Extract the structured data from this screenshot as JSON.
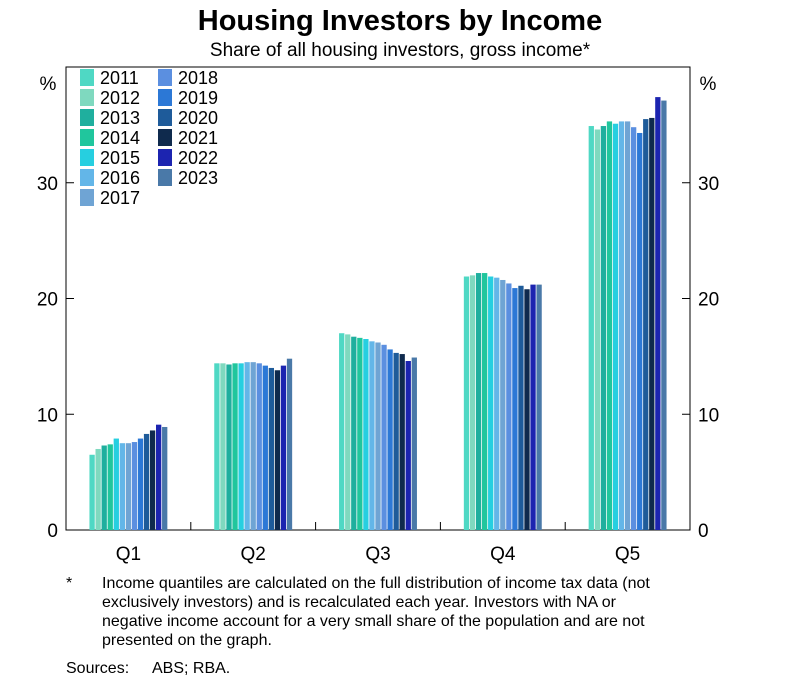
{
  "chart_data": {
    "type": "bar",
    "title": "Housing Investors by Income",
    "subtitle": "Share of all housing investors, gross income*",
    "ylabel_left": "%",
    "ylabel_right": "%",
    "ylim": [
      0,
      40
    ],
    "yticks": [
      0,
      10,
      20,
      30
    ],
    "grid": false,
    "legend_position": "top-left",
    "categories": [
      "Q1",
      "Q2",
      "Q3",
      "Q4",
      "Q5"
    ],
    "series": [
      {
        "name": "2011",
        "color": "#4fd8c4",
        "values": [
          6.5,
          14.4,
          17.0,
          21.9,
          34.9
        ]
      },
      {
        "name": "2012",
        "color": "#7fd9bf",
        "values": [
          7.0,
          14.4,
          16.9,
          22.0,
          34.6
        ]
      },
      {
        "name": "2013",
        "color": "#1faf9e",
        "values": [
          7.3,
          14.3,
          16.7,
          22.2,
          34.9
        ]
      },
      {
        "name": "2014",
        "color": "#20c69d",
        "values": [
          7.4,
          14.4,
          16.6,
          22.2,
          35.3
        ]
      },
      {
        "name": "2015",
        "color": "#26cfe0",
        "values": [
          7.9,
          14.4,
          16.5,
          21.9,
          35.1
        ]
      },
      {
        "name": "2016",
        "color": "#63b6e8",
        "values": [
          7.5,
          14.5,
          16.3,
          21.8,
          35.3
        ]
      },
      {
        "name": "2017",
        "color": "#6fa4d4",
        "values": [
          7.5,
          14.5,
          16.2,
          21.6,
          35.3
        ]
      },
      {
        "name": "2018",
        "color": "#5b8fe0",
        "values": [
          7.6,
          14.4,
          16.0,
          21.3,
          34.8
        ]
      },
      {
        "name": "2019",
        "color": "#2c78d6",
        "values": [
          7.9,
          14.2,
          15.6,
          20.9,
          34.3
        ]
      },
      {
        "name": "2020",
        "color": "#1e5b9a",
        "values": [
          8.3,
          14.0,
          15.3,
          21.1,
          35.5
        ]
      },
      {
        "name": "2021",
        "color": "#0f2a4d",
        "values": [
          8.6,
          13.8,
          15.2,
          20.8,
          35.6
        ]
      },
      {
        "name": "2022",
        "color": "#1c24b0",
        "values": [
          9.1,
          14.2,
          14.6,
          21.2,
          37.4
        ]
      },
      {
        "name": "2023",
        "color": "#4a79a8",
        "values": [
          8.9,
          14.8,
          14.9,
          21.2,
          37.1
        ]
      }
    ],
    "legend_extra_swatch": {
      "name": "2017",
      "color": "#6fa4d4"
    }
  },
  "footnote": {
    "marker": "*",
    "text": "Income quantiles are calculated on the full distribution of income tax data (not exclusively investors) and is recalculated each year. Investors with NA or negative income account for a very small share of the population and are not presented on the graph."
  },
  "sources": {
    "label": "Sources:",
    "text": "ABS; RBA."
  }
}
